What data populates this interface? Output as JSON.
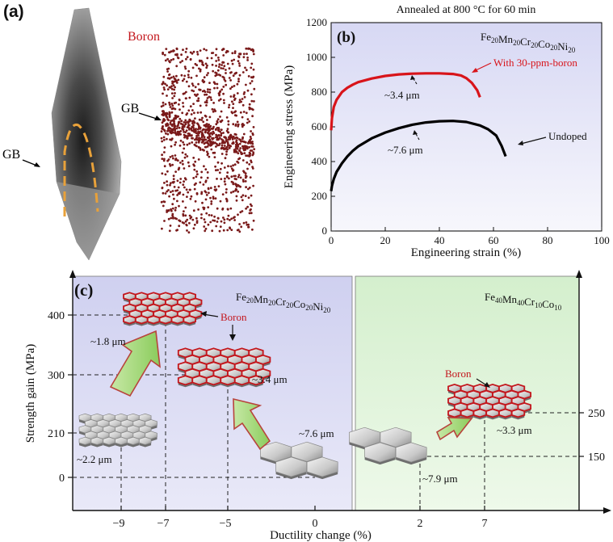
{
  "panel_a": {
    "label": "(a)",
    "boron_label": "Boron",
    "gb_label_left": "GB",
    "gb_label_right": "GB"
  },
  "panel_b": {
    "label": "(b)",
    "title": "Annealed at 800 °C for 60 min",
    "composition_main": "Fe",
    "composition_parts": [
      {
        "el": "Fe",
        "sub": "20"
      },
      {
        "el": "Mn",
        "sub": "20"
      },
      {
        "el": "Cr",
        "sub": "20"
      },
      {
        "el": "Co",
        "sub": "20"
      },
      {
        "el": "Ni",
        "sub": "20"
      }
    ],
    "annotations": {
      "boron_curve": "With 30-ppm-boron",
      "undoped_curve": "Undoped",
      "grain_boron": "~3.4 μm",
      "grain_undoped": "~7.6 μm"
    },
    "colors": {
      "boron": "#d8141a",
      "undoped": "#000000"
    }
  },
  "chart_data": {
    "type": "line",
    "xlabel": "Engineering strain (%)",
    "ylabel": "Engineering stress (MPa)",
    "xlim": [
      0,
      100
    ],
    "ylim": [
      0,
      1200
    ],
    "xticks": [
      0,
      20,
      40,
      60,
      80,
      100
    ],
    "yticks": [
      0,
      200,
      400,
      600,
      800,
      1000,
      1200
    ],
    "series": [
      {
        "name": "With 30-ppm-boron",
        "x": [
          0,
          0.3,
          1,
          2,
          4,
          6,
          8,
          10,
          15,
          20,
          25,
          30,
          35,
          40,
          45,
          48,
          50,
          52,
          54,
          55
        ],
        "y": [
          580,
          650,
          715,
          755,
          800,
          825,
          843,
          857,
          878,
          893,
          902,
          906,
          908,
          908,
          904,
          896,
          880,
          853,
          810,
          770
        ]
      },
      {
        "name": "Undoped",
        "x": [
          0,
          0.3,
          1,
          2,
          4,
          6,
          8,
          10,
          15,
          20,
          25,
          30,
          35,
          40,
          45,
          50,
          55,
          58,
          61,
          63,
          64.5
        ],
        "y": [
          230,
          260,
          300,
          340,
          390,
          430,
          462,
          487,
          534,
          567,
          592,
          612,
          625,
          632,
          634,
          628,
          608,
          586,
          550,
          490,
          430
        ]
      }
    ]
  },
  "panel_c": {
    "label": "(c)",
    "ylabel": "Strength gain (MPa)",
    "xlabel": "Ductility change (%)",
    "yticks": [
      "400",
      "300",
      "210",
      "0"
    ],
    "yticks_right": [
      "250",
      "150"
    ],
    "xticks": [
      "−9",
      "−7",
      "−5",
      "0",
      "2",
      "7"
    ],
    "left_alloy_parts": [
      {
        "el": "Fe",
        "sub": "20"
      },
      {
        "el": "Mn",
        "sub": "20"
      },
      {
        "el": "Cr",
        "sub": "20"
      },
      {
        "el": "Co",
        "sub": "20"
      },
      {
        "el": "Ni",
        "sub": "20"
      }
    ],
    "right_alloy_parts": [
      {
        "el": "Fe",
        "sub": "40"
      },
      {
        "el": "Mn",
        "sub": "40"
      },
      {
        "el": "Cr",
        "sub": "10"
      },
      {
        "el": "Co",
        "sub": "10"
      }
    ],
    "grain_labels": {
      "g_18": "~1.8 μm",
      "g_34": "~3.4 μm",
      "g_22": "~2.2 μm",
      "g_76": "~7.6 μm",
      "g_33": "~3.3 μm",
      "g_79": "~7.9 μm"
    },
    "boron_left": "Boron",
    "boron_right": "Boron",
    "colors": {
      "left_bg": "#d6d6f3",
      "right_bg": "#dcf2d6",
      "boron": "#c3161c",
      "arrow": "#9bd46e"
    }
  }
}
